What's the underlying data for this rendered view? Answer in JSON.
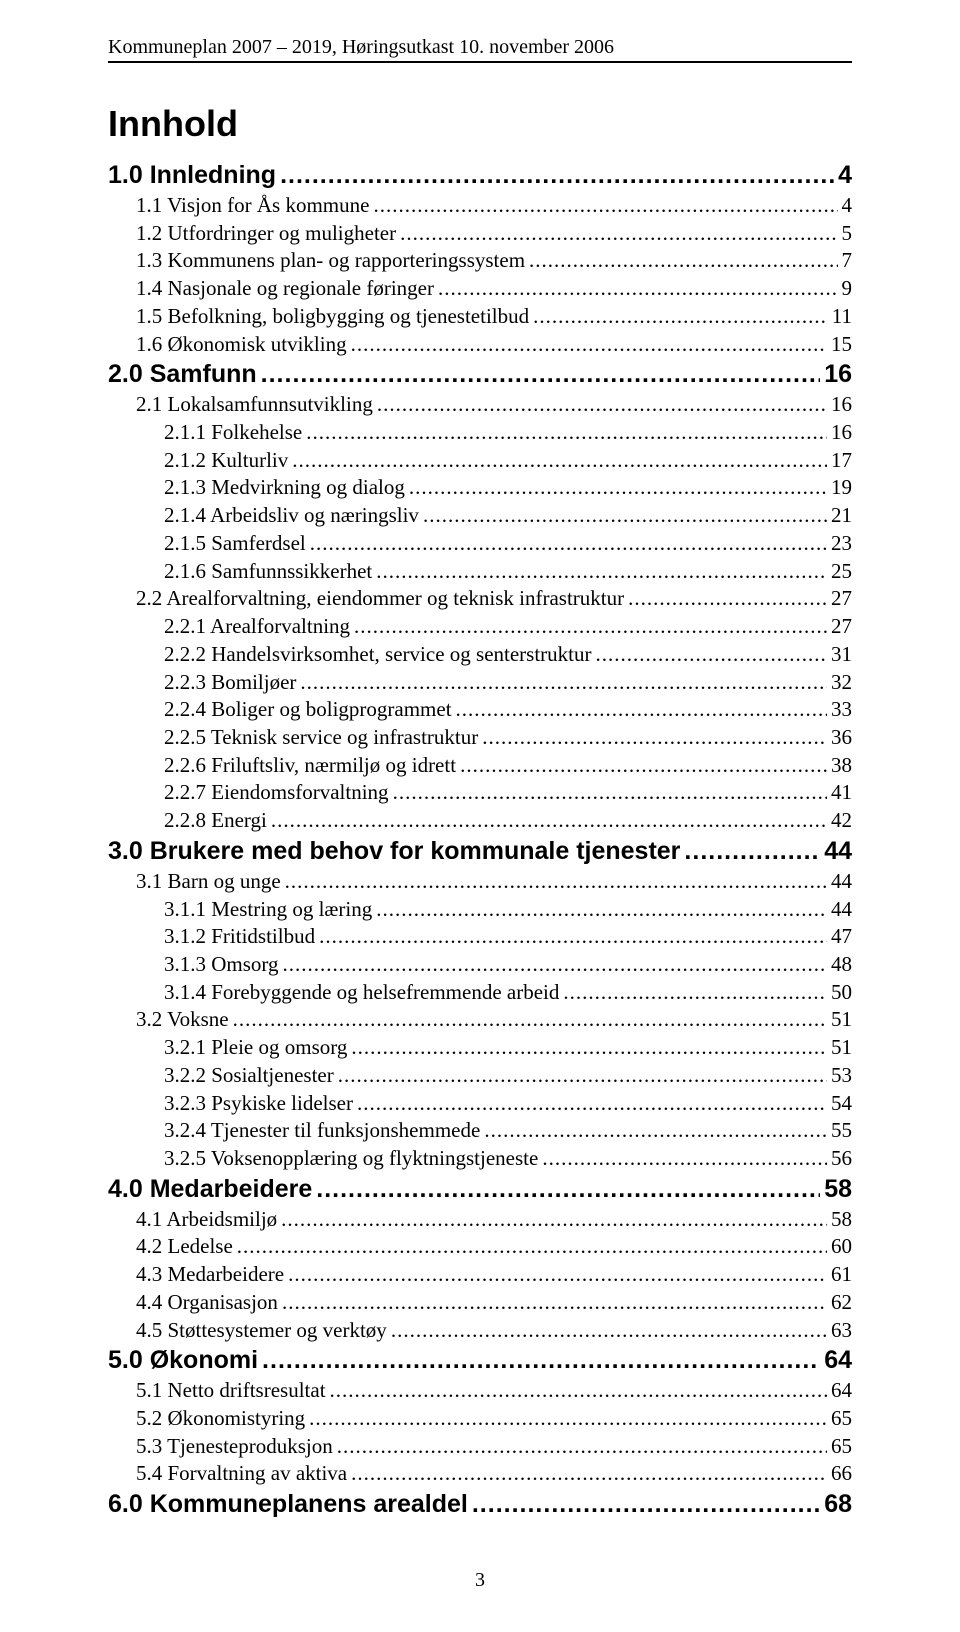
{
  "running_header": "Kommuneplan 2007 – 2019, Høringsutkast 10. november 2006",
  "doc_title": "Innhold",
  "page_number": "3",
  "toc": [
    {
      "level": 1,
      "label": "1.0 Innledning",
      "page": "4"
    },
    {
      "level": 2,
      "label": "1.1 Visjon for Ås kommune",
      "page": "4"
    },
    {
      "level": 2,
      "label": "1.2 Utfordringer og muligheter",
      "page": "5"
    },
    {
      "level": 2,
      "label": "1.3 Kommunens plan- og rapporteringssystem",
      "page": "7"
    },
    {
      "level": 2,
      "label": "1.4 Nasjonale og regionale føringer",
      "page": "9"
    },
    {
      "level": 2,
      "label": "1.5 Befolkning, boligbygging og tjenestetilbud",
      "page": "11"
    },
    {
      "level": 2,
      "label": "1.6 Økonomisk utvikling",
      "page": "15"
    },
    {
      "level": 1,
      "label": "2.0 Samfunn",
      "page": "16"
    },
    {
      "level": 2,
      "label": "2.1 Lokalsamfunnsutvikling",
      "page": "16"
    },
    {
      "level": 3,
      "label": "2.1.1 Folkehelse",
      "page": "16"
    },
    {
      "level": 3,
      "label": "2.1.2 Kulturliv",
      "page": "17"
    },
    {
      "level": 3,
      "label": "2.1.3 Medvirkning og dialog",
      "page": "19"
    },
    {
      "level": 3,
      "label": "2.1.4 Arbeidsliv og næringsliv",
      "page": "21"
    },
    {
      "level": 3,
      "label": "2.1.5 Samferdsel",
      "page": "23"
    },
    {
      "level": 3,
      "label": "2.1.6 Samfunnssikkerhet",
      "page": "25"
    },
    {
      "level": 2,
      "label": "2.2 Arealforvaltning, eiendommer og teknisk infrastruktur",
      "page": "27"
    },
    {
      "level": 3,
      "label": "2.2.1 Arealforvaltning",
      "page": "27"
    },
    {
      "level": 3,
      "label": "2.2.2 Handelsvirksomhet, service og senterstruktur",
      "page": "31"
    },
    {
      "level": 3,
      "label": "2.2.3 Bomiljøer",
      "page": "32"
    },
    {
      "level": 3,
      "label": "2.2.4 Boliger og boligprogrammet",
      "page": "33"
    },
    {
      "level": 3,
      "label": "2.2.5 Teknisk service og infrastruktur",
      "page": "36"
    },
    {
      "level": 3,
      "label": "2.2.6 Friluftsliv, nærmiljø og idrett",
      "page": "38"
    },
    {
      "level": 3,
      "label": "2.2.7 Eiendomsforvaltning",
      "page": "41"
    },
    {
      "level": 3,
      "label": "2.2.8 Energi",
      "page": "42"
    },
    {
      "level": 1,
      "label": "3.0 Brukere med behov for kommunale tjenester",
      "page": "44"
    },
    {
      "level": 2,
      "label": "3.1 Barn og unge",
      "page": "44"
    },
    {
      "level": 3,
      "label": "3.1.1 Mestring og læring",
      "page": "44"
    },
    {
      "level": 3,
      "label": "3.1.2 Fritidstilbud",
      "page": "47"
    },
    {
      "level": 3,
      "label": "3.1.3 Omsorg",
      "page": "48"
    },
    {
      "level": 3,
      "label": "3.1.4 Forebyggende og helsefremmende arbeid",
      "page": "50"
    },
    {
      "level": 2,
      "label": "3.2 Voksne",
      "page": "51"
    },
    {
      "level": 3,
      "label": "3.2.1 Pleie og omsorg",
      "page": "51"
    },
    {
      "level": 3,
      "label": "3.2.2 Sosialtjenester",
      "page": "53"
    },
    {
      "level": 3,
      "label": "3.2.3 Psykiske lidelser",
      "page": "54"
    },
    {
      "level": 3,
      "label": "3.2.4 Tjenester til funksjonshemmede",
      "page": "55"
    },
    {
      "level": 3,
      "label": "3.2.5 Voksenopplæring og flyktningstjeneste",
      "page": "56"
    },
    {
      "level": 1,
      "label": "4.0 Medarbeidere",
      "page": "58"
    },
    {
      "level": 2,
      "label": "4.1 Arbeidsmiljø",
      "page": "58"
    },
    {
      "level": 2,
      "label": "4.2 Ledelse",
      "page": "60"
    },
    {
      "level": 2,
      "label": "4.3 Medarbeidere",
      "page": "61"
    },
    {
      "level": 2,
      "label": "4.4 Organisasjon",
      "page": "62"
    },
    {
      "level": 2,
      "label": "4.5 Støttesystemer og verktøy",
      "page": "63"
    },
    {
      "level": 1,
      "label": "5.0 Økonomi",
      "page": "64"
    },
    {
      "level": 2,
      "label": "5.1 Netto driftsresultat",
      "page": "64"
    },
    {
      "level": 2,
      "label": "5.2 Økonomistyring",
      "page": "65"
    },
    {
      "level": 2,
      "label": "5.3 Tjenesteproduksjon",
      "page": "65"
    },
    {
      "level": 2,
      "label": "5.4 Forvaltning av aktiva",
      "page": "66"
    },
    {
      "level": 1,
      "label": "6.0  Kommuneplanens arealdel",
      "page": "68"
    }
  ]
}
